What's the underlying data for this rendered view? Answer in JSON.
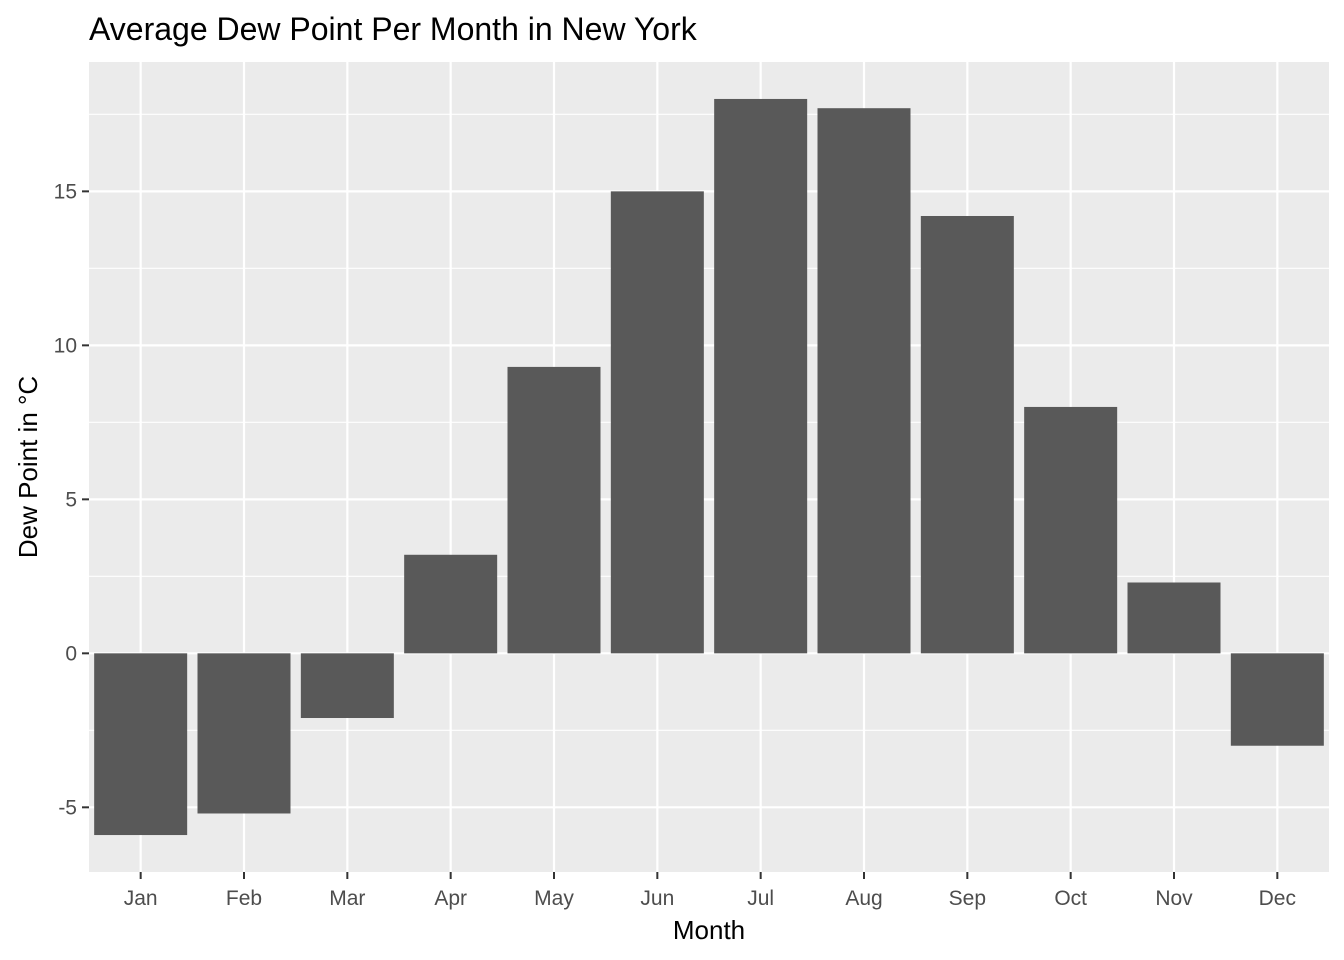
{
  "chart_data": {
    "type": "bar",
    "title": "Average Dew Point Per Month in New York",
    "xlabel": "Month",
    "ylabel": "Dew Point in °C",
    "categories": [
      "Jan",
      "Feb",
      "Mar",
      "Apr",
      "May",
      "Jun",
      "Jul",
      "Aug",
      "Sep",
      "Oct",
      "Nov",
      "Dec"
    ],
    "values": [
      -5.9,
      -5.2,
      -2.1,
      3.2,
      9.3,
      15.0,
      18.0,
      17.7,
      14.2,
      8.0,
      2.3,
      -3.0
    ],
    "yticks": [
      -5,
      0,
      5,
      10,
      15
    ],
    "ylim": [
      -7.1,
      19.2
    ],
    "grid": true,
    "legend": "none",
    "colors": {
      "panel_background": "#ebebeb",
      "grid_line": "#ffffff",
      "bar_fill": "#595959",
      "tick_text": "#4d4d4d",
      "tick_mark": "#333333"
    }
  }
}
